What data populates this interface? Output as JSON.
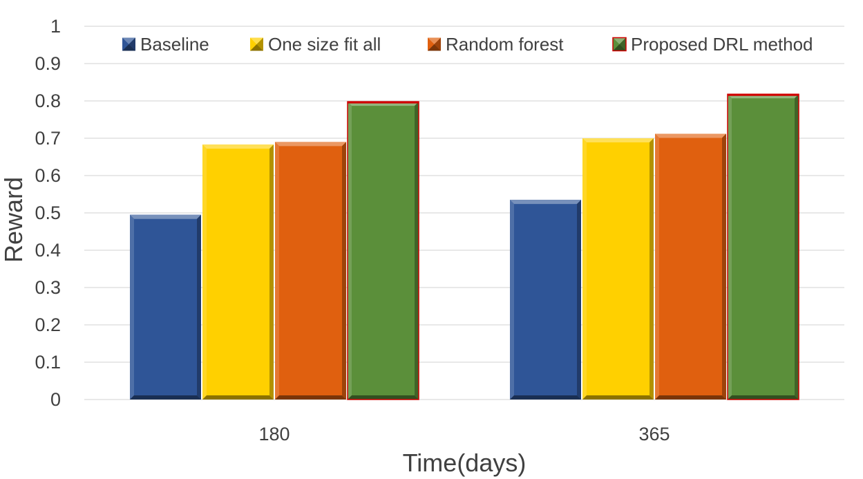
{
  "chart_data": {
    "type": "bar",
    "title": "",
    "xlabel": "Time(days)",
    "ylabel": "Reward",
    "ylim": [
      0,
      1
    ],
    "yticks": [
      "0",
      "0.1",
      "0.2",
      "0.3",
      "0.4",
      "0.5",
      "0.6",
      "0.7",
      "0.8",
      "0.9",
      "1"
    ],
    "grid": true,
    "legend_position": "top",
    "categories": [
      "180",
      "365"
    ],
    "series": [
      {
        "name": "Baseline",
        "values": [
          0.495,
          0.535
        ],
        "color": "#2f5597"
      },
      {
        "name": "One size fit all",
        "values": [
          0.683,
          0.7
        ],
        "color": "#ffd000"
      },
      {
        "name": "Random forest",
        "values": [
          0.69,
          0.712
        ],
        "color": "#e0600f"
      },
      {
        "name": "Proposed DRL method",
        "values": [
          0.798,
          0.818
        ],
        "color": "#5b8f3a",
        "edge": "#d00000"
      }
    ]
  }
}
